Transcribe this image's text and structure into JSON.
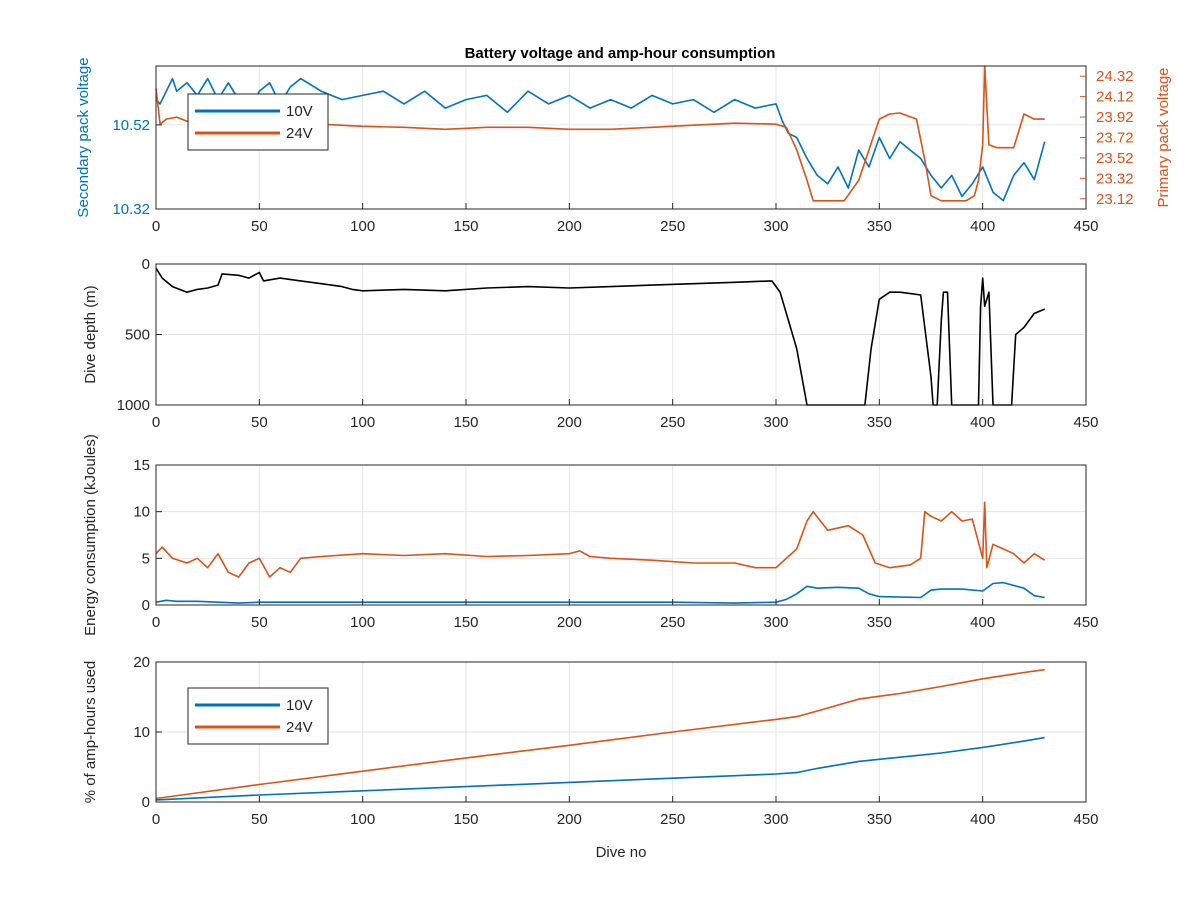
{
  "colors": {
    "blue": "#0072BD",
    "orange": "#D95319",
    "black": "#000000",
    "grid": "#e6e6e6",
    "axis": "#262626"
  },
  "chart_data": [
    {
      "type": "line",
      "title": "Battery voltage and amp-hour consumption",
      "xlabel": "",
      "ylabel": "Secondary pack voltage",
      "ylabel_right": "Primary pack voltage",
      "xlim": [
        0,
        450
      ],
      "ylim": [
        10.32,
        10.66
      ],
      "ylim_right": [
        23.02,
        24.42
      ],
      "xticks": [
        0,
        50,
        100,
        150,
        200,
        250,
        300,
        350,
        400,
        450
      ],
      "yticks": [
        10.32,
        10.52
      ],
      "yticks_right": [
        23.12,
        23.32,
        23.52,
        23.72,
        23.92,
        24.12,
        24.32
      ],
      "grid": true,
      "legend": "top-left",
      "series": [
        {
          "name": "10V",
          "axis": "left",
          "x": [
            0,
            2,
            5,
            8,
            10,
            15,
            20,
            25,
            30,
            35,
            40,
            45,
            50,
            55,
            60,
            65,
            70,
            80,
            90,
            100,
            110,
            120,
            130,
            140,
            150,
            160,
            170,
            180,
            190,
            200,
            210,
            220,
            230,
            240,
            250,
            260,
            270,
            280,
            290,
            300,
            303,
            306,
            310,
            315,
            320,
            325,
            330,
            335,
            340,
            345,
            350,
            355,
            360,
            365,
            370,
            375,
            380,
            385,
            390,
            395,
            400,
            405,
            410,
            415,
            420,
            425,
            430
          ],
          "values": [
            10.58,
            10.57,
            10.6,
            10.63,
            10.6,
            10.62,
            10.59,
            10.63,
            10.58,
            10.62,
            10.58,
            10.55,
            10.6,
            10.62,
            10.57,
            10.61,
            10.63,
            10.6,
            10.58,
            10.59,
            10.6,
            10.57,
            10.6,
            10.56,
            10.58,
            10.59,
            10.55,
            10.6,
            10.57,
            10.59,
            10.56,
            10.58,
            10.56,
            10.59,
            10.57,
            10.58,
            10.55,
            10.58,
            10.56,
            10.57,
            10.53,
            10.5,
            10.49,
            10.44,
            10.4,
            10.38,
            10.42,
            10.37,
            10.46,
            10.42,
            10.49,
            10.44,
            10.48,
            10.46,
            10.44,
            10.4,
            10.37,
            10.4,
            10.35,
            10.38,
            10.42,
            10.36,
            10.34,
            10.4,
            10.43,
            10.39,
            10.48
          ]
        },
        {
          "name": "24V",
          "axis": "right",
          "x": [
            0,
            2,
            5,
            10,
            15,
            20,
            30,
            40,
            50,
            60,
            80,
            100,
            120,
            140,
            160,
            180,
            200,
            220,
            240,
            260,
            280,
            300,
            305,
            310,
            315,
            318,
            325,
            333,
            340,
            345,
            350,
            355,
            360,
            368,
            372,
            375,
            380,
            386,
            392,
            396,
            398,
            400,
            401,
            403,
            407,
            412,
            415,
            420,
            425,
            430
          ],
          "values": [
            24.2,
            23.85,
            23.9,
            23.92,
            23.88,
            23.9,
            23.88,
            23.86,
            23.87,
            23.86,
            23.85,
            23.83,
            23.82,
            23.8,
            23.82,
            23.82,
            23.8,
            23.8,
            23.82,
            23.84,
            23.86,
            23.85,
            23.82,
            23.6,
            23.3,
            23.1,
            23.1,
            23.1,
            23.3,
            23.6,
            23.9,
            23.95,
            23.96,
            23.9,
            23.5,
            23.15,
            23.1,
            23.1,
            23.1,
            23.15,
            23.3,
            23.65,
            24.42,
            23.65,
            23.62,
            23.62,
            23.62,
            23.95,
            23.9,
            23.9
          ]
        }
      ]
    },
    {
      "type": "line",
      "title": "",
      "xlabel": "",
      "ylabel": "Dive depth (m)",
      "xlim": [
        0,
        450
      ],
      "ylim": [
        0,
        1000
      ],
      "y_reversed": true,
      "xticks": [
        0,
        50,
        100,
        150,
        200,
        250,
        300,
        350,
        400,
        450
      ],
      "yticks": [
        0,
        500,
        1000
      ],
      "grid": true,
      "series": [
        {
          "x": [
            0,
            3,
            8,
            15,
            20,
            25,
            30,
            32,
            40,
            45,
            50,
            52,
            60,
            70,
            80,
            90,
            95,
            100,
            120,
            140,
            160,
            180,
            200,
            220,
            240,
            260,
            280,
            298,
            302,
            306,
            310,
            315,
            318,
            325,
            335,
            343,
            346,
            350,
            355,
            360,
            365,
            370,
            375,
            376,
            378,
            380,
            381,
            383,
            385,
            390,
            395,
            398,
            399,
            400,
            401,
            403,
            405,
            410,
            414,
            416,
            420,
            425,
            430
          ],
          "values": [
            30,
            100,
            160,
            200,
            180,
            170,
            150,
            70,
            80,
            100,
            60,
            120,
            100,
            120,
            140,
            160,
            180,
            190,
            180,
            190,
            170,
            160,
            170,
            160,
            150,
            140,
            130,
            120,
            200,
            400,
            600,
            1000,
            1000,
            1000,
            1000,
            1000,
            600,
            250,
            200,
            200,
            210,
            220,
            800,
            1000,
            1000,
            400,
            200,
            200,
            1000,
            1000,
            1000,
            1000,
            300,
            100,
            300,
            200,
            1000,
            1000,
            1000,
            500,
            450,
            350,
            320
          ]
        }
      ]
    },
    {
      "type": "line",
      "title": "",
      "xlabel": "",
      "ylabel": "Energy consumption (kJoules)",
      "xlim": [
        0,
        450
      ],
      "ylim": [
        0,
        15
      ],
      "xticks": [
        0,
        50,
        100,
        150,
        200,
        250,
        300,
        350,
        400,
        450
      ],
      "yticks": [
        0,
        5,
        10,
        15
      ],
      "grid": true,
      "series": [
        {
          "name": "10V",
          "x": [
            0,
            5,
            10,
            20,
            30,
            40,
            50,
            60,
            80,
            100,
            150,
            200,
            210,
            250,
            280,
            300,
            305,
            310,
            315,
            320,
            330,
            340,
            345,
            350,
            370,
            375,
            380,
            390,
            400,
            405,
            410,
            420,
            425,
            430
          ],
          "values": [
            0.3,
            0.5,
            0.4,
            0.4,
            0.3,
            0.2,
            0.3,
            0.3,
            0.3,
            0.3,
            0.3,
            0.3,
            0.3,
            0.3,
            0.2,
            0.3,
            0.6,
            1.2,
            2.0,
            1.8,
            1.9,
            1.8,
            1.2,
            0.9,
            0.8,
            1.6,
            1.7,
            1.7,
            1.5,
            2.3,
            2.4,
            1.8,
            1.0,
            0.8
          ]
        },
        {
          "name": "24V",
          "x": [
            0,
            3,
            8,
            15,
            20,
            25,
            30,
            35,
            40,
            45,
            50,
            55,
            60,
            65,
            70,
            80,
            100,
            120,
            140,
            160,
            180,
            200,
            205,
            210,
            220,
            240,
            260,
            280,
            290,
            300,
            305,
            310,
            315,
            318,
            325,
            335,
            342,
            348,
            355,
            365,
            370,
            372,
            375,
            380,
            385,
            390,
            395,
            400,
            401,
            402,
            405,
            410,
            415,
            420,
            425,
            430
          ],
          "values": [
            5.5,
            6.2,
            5.0,
            4.5,
            5.0,
            4.0,
            5.5,
            3.5,
            3.0,
            4.5,
            5.0,
            3.0,
            4.0,
            3.5,
            5.0,
            5.2,
            5.5,
            5.3,
            5.5,
            5.2,
            5.3,
            5.5,
            5.8,
            5.2,
            5.0,
            4.8,
            4.5,
            4.5,
            4.0,
            4.0,
            5.0,
            6.0,
            9.0,
            10.0,
            8.0,
            8.5,
            7.5,
            4.5,
            4.0,
            4.3,
            5.0,
            10.0,
            9.5,
            9.0,
            10.0,
            9.0,
            9.2,
            5.0,
            11.0,
            4.0,
            6.5,
            6.0,
            5.5,
            4.5,
            5.5,
            4.8
          ]
        }
      ]
    },
    {
      "type": "line",
      "title": "",
      "xlabel": "Dive no",
      "ylabel": "% of amp-hours used",
      "xlim": [
        0,
        450
      ],
      "ylim": [
        0,
        20
      ],
      "xticks": [
        0,
        50,
        100,
        150,
        200,
        250,
        300,
        350,
        400,
        450
      ],
      "yticks": [
        0,
        10,
        20
      ],
      "grid": true,
      "legend": "top-left",
      "series": [
        {
          "name": "10V",
          "x": [
            0,
            50,
            100,
            150,
            200,
            250,
            300,
            310,
            320,
            340,
            360,
            380,
            400,
            420,
            430
          ],
          "values": [
            0.3,
            1.0,
            1.6,
            2.2,
            2.8,
            3.4,
            4.0,
            4.2,
            4.8,
            5.8,
            6.4,
            7.0,
            7.8,
            8.7,
            9.2
          ]
        },
        {
          "name": "24V",
          "x": [
            0,
            50,
            100,
            150,
            200,
            250,
            300,
            310,
            320,
            340,
            360,
            380,
            400,
            420,
            430
          ],
          "values": [
            0.5,
            2.5,
            4.4,
            6.3,
            8.1,
            10.0,
            11.8,
            12.2,
            13.0,
            14.7,
            15.5,
            16.5,
            17.6,
            18.5,
            18.9
          ]
        }
      ]
    }
  ]
}
